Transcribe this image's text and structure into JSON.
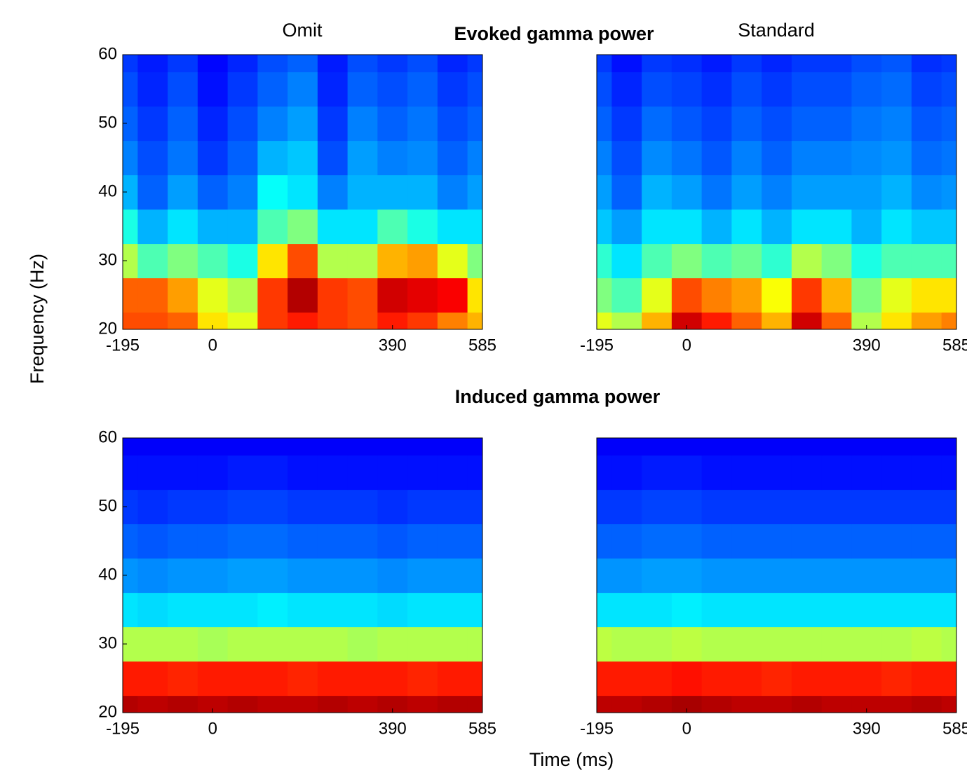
{
  "figure": {
    "row_titles": [
      "Evoked gamma power",
      "Induced gamma power"
    ],
    "column_titles": [
      "Omit",
      "Standard"
    ],
    "ylabel": "Frequency (Hz)",
    "xlabel": "Time (ms)"
  },
  "chart_data": [
    {
      "type": "heatmap",
      "colormap": "jet",
      "x": [
        -195,
        -130,
        -65,
        0,
        65,
        130,
        195,
        260,
        325,
        390,
        455,
        520,
        585
      ],
      "y": [
        20,
        25,
        30,
        35,
        40,
        45,
        50,
        55,
        60
      ],
      "xlim": [
        -195,
        585
      ],
      "ylim": [
        20,
        60
      ],
      "xticks": [
        -195,
        0,
        390,
        585
      ],
      "yticks": [
        20,
        30,
        40,
        50,
        60
      ],
      "values": [
        [
          0.8,
          0.8,
          0.78,
          0.65,
          0.6,
          0.82,
          0.85,
          0.82,
          0.8,
          0.85,
          0.82,
          0.75,
          0.7
        ],
        [
          0.78,
          0.78,
          0.72,
          0.6,
          0.55,
          0.82,
          0.95,
          0.82,
          0.8,
          0.92,
          0.9,
          0.88,
          0.65
        ],
        [
          0.55,
          0.45,
          0.5,
          0.45,
          0.4,
          0.65,
          0.8,
          0.55,
          0.55,
          0.7,
          0.72,
          0.6,
          0.5
        ],
        [
          0.4,
          0.3,
          0.35,
          0.3,
          0.3,
          0.45,
          0.5,
          0.35,
          0.35,
          0.45,
          0.4,
          0.35,
          0.35
        ],
        [
          0.3,
          0.22,
          0.28,
          0.22,
          0.25,
          0.38,
          0.35,
          0.25,
          0.3,
          0.3,
          0.3,
          0.25,
          0.28
        ],
        [
          0.25,
          0.2,
          0.24,
          0.18,
          0.22,
          0.3,
          0.32,
          0.2,
          0.28,
          0.25,
          0.26,
          0.22,
          0.25
        ],
        [
          0.22,
          0.18,
          0.22,
          0.16,
          0.2,
          0.25,
          0.28,
          0.18,
          0.25,
          0.22,
          0.24,
          0.2,
          0.22
        ],
        [
          0.2,
          0.16,
          0.2,
          0.14,
          0.18,
          0.22,
          0.25,
          0.16,
          0.22,
          0.2,
          0.22,
          0.18,
          0.2
        ],
        [
          0.18,
          0.15,
          0.18,
          0.13,
          0.16,
          0.2,
          0.22,
          0.15,
          0.2,
          0.18,
          0.2,
          0.16,
          0.18
        ]
      ]
    },
    {
      "type": "heatmap",
      "colormap": "jet",
      "x": [
        -195,
        -130,
        -65,
        0,
        65,
        130,
        195,
        260,
        325,
        390,
        455,
        520,
        585
      ],
      "y": [
        20,
        25,
        30,
        35,
        40,
        45,
        50,
        55,
        60
      ],
      "xlim": [
        -195,
        585
      ],
      "ylim": [
        20,
        60
      ],
      "xticks": [
        -195,
        0,
        390,
        585
      ],
      "values": [
        [
          0.6,
          0.55,
          0.7,
          0.92,
          0.85,
          0.78,
          0.7,
          0.92,
          0.78,
          0.55,
          0.65,
          0.72,
          0.75
        ],
        [
          0.5,
          0.45,
          0.6,
          0.8,
          0.75,
          0.72,
          0.62,
          0.82,
          0.7,
          0.5,
          0.6,
          0.65,
          0.65
        ],
        [
          0.42,
          0.35,
          0.45,
          0.5,
          0.45,
          0.48,
          0.42,
          0.55,
          0.5,
          0.4,
          0.45,
          0.45,
          0.45
        ],
        [
          0.32,
          0.28,
          0.35,
          0.35,
          0.3,
          0.35,
          0.3,
          0.35,
          0.35,
          0.3,
          0.35,
          0.32,
          0.32
        ],
        [
          0.28,
          0.22,
          0.3,
          0.28,
          0.24,
          0.28,
          0.25,
          0.28,
          0.28,
          0.28,
          0.3,
          0.26,
          0.27
        ],
        [
          0.25,
          0.2,
          0.26,
          0.24,
          0.21,
          0.25,
          0.22,
          0.25,
          0.25,
          0.26,
          0.27,
          0.23,
          0.24
        ],
        [
          0.22,
          0.18,
          0.23,
          0.21,
          0.19,
          0.22,
          0.2,
          0.22,
          0.22,
          0.24,
          0.25,
          0.21,
          0.22
        ],
        [
          0.2,
          0.16,
          0.2,
          0.19,
          0.17,
          0.2,
          0.18,
          0.2,
          0.2,
          0.22,
          0.23,
          0.19,
          0.2
        ],
        [
          0.18,
          0.14,
          0.18,
          0.17,
          0.15,
          0.18,
          0.16,
          0.18,
          0.18,
          0.2,
          0.21,
          0.17,
          0.18
        ]
      ]
    },
    {
      "type": "heatmap",
      "colormap": "jet",
      "x": [
        -195,
        -130,
        -65,
        0,
        65,
        130,
        195,
        260,
        325,
        390,
        455,
        520,
        585
      ],
      "y": [
        20,
        25,
        30,
        35,
        40,
        45,
        50,
        55,
        60
      ],
      "xlim": [
        -195,
        585
      ],
      "ylim": [
        20,
        60
      ],
      "xticks": [
        -195,
        0,
        390,
        585
      ],
      "yticks": [
        20,
        30,
        40,
        50,
        60
      ],
      "values": [
        [
          0.95,
          0.94,
          0.95,
          0.94,
          0.95,
          0.94,
          0.94,
          0.95,
          0.94,
          0.95,
          0.94,
          0.95,
          0.95
        ],
        [
          0.85,
          0.85,
          0.84,
          0.85,
          0.85,
          0.85,
          0.84,
          0.85,
          0.85,
          0.85,
          0.84,
          0.85,
          0.85
        ],
        [
          0.55,
          0.55,
          0.55,
          0.54,
          0.55,
          0.55,
          0.55,
          0.55,
          0.54,
          0.55,
          0.55,
          0.55,
          0.55
        ],
        [
          0.35,
          0.34,
          0.35,
          0.35,
          0.35,
          0.36,
          0.35,
          0.35,
          0.35,
          0.34,
          0.35,
          0.35,
          0.35
        ],
        [
          0.27,
          0.26,
          0.27,
          0.27,
          0.28,
          0.28,
          0.27,
          0.27,
          0.27,
          0.26,
          0.27,
          0.27,
          0.27
        ],
        [
          0.22,
          0.21,
          0.22,
          0.22,
          0.23,
          0.23,
          0.22,
          0.22,
          0.22,
          0.21,
          0.22,
          0.22,
          0.22
        ],
        [
          0.18,
          0.17,
          0.18,
          0.18,
          0.19,
          0.19,
          0.18,
          0.18,
          0.18,
          0.17,
          0.18,
          0.18,
          0.18
        ],
        [
          0.14,
          0.14,
          0.14,
          0.14,
          0.15,
          0.15,
          0.14,
          0.14,
          0.14,
          0.14,
          0.14,
          0.14,
          0.14
        ],
        [
          0.12,
          0.12,
          0.12,
          0.12,
          0.12,
          0.12,
          0.12,
          0.12,
          0.12,
          0.12,
          0.12,
          0.12,
          0.12
        ]
      ]
    },
    {
      "type": "heatmap",
      "colormap": "jet",
      "x": [
        -195,
        -130,
        -65,
        0,
        65,
        130,
        195,
        260,
        325,
        390,
        455,
        520,
        585
      ],
      "y": [
        20,
        25,
        30,
        35,
        40,
        45,
        50,
        55,
        60
      ],
      "xlim": [
        -195,
        585
      ],
      "ylim": [
        20,
        60
      ],
      "xticks": [
        -195,
        0,
        390,
        585
      ],
      "values": [
        [
          0.94,
          0.94,
          0.95,
          0.96,
          0.95,
          0.94,
          0.94,
          0.95,
          0.94,
          0.94,
          0.94,
          0.95,
          0.94
        ],
        [
          0.85,
          0.85,
          0.85,
          0.86,
          0.85,
          0.85,
          0.84,
          0.85,
          0.85,
          0.85,
          0.84,
          0.85,
          0.85
        ],
        [
          0.56,
          0.55,
          0.55,
          0.56,
          0.55,
          0.55,
          0.55,
          0.55,
          0.55,
          0.55,
          0.55,
          0.56,
          0.55
        ],
        [
          0.35,
          0.35,
          0.35,
          0.36,
          0.35,
          0.35,
          0.35,
          0.35,
          0.35,
          0.35,
          0.35,
          0.35,
          0.35
        ],
        [
          0.27,
          0.27,
          0.28,
          0.28,
          0.27,
          0.27,
          0.27,
          0.27,
          0.27,
          0.27,
          0.27,
          0.27,
          0.27
        ],
        [
          0.22,
          0.22,
          0.23,
          0.23,
          0.22,
          0.22,
          0.22,
          0.22,
          0.22,
          0.22,
          0.22,
          0.22,
          0.22
        ],
        [
          0.18,
          0.18,
          0.19,
          0.19,
          0.18,
          0.18,
          0.18,
          0.18,
          0.18,
          0.18,
          0.18,
          0.18,
          0.18
        ],
        [
          0.14,
          0.14,
          0.15,
          0.15,
          0.14,
          0.14,
          0.14,
          0.14,
          0.14,
          0.14,
          0.14,
          0.14,
          0.14
        ],
        [
          0.12,
          0.12,
          0.12,
          0.12,
          0.12,
          0.12,
          0.12,
          0.12,
          0.12,
          0.12,
          0.12,
          0.12,
          0.12
        ]
      ]
    }
  ]
}
